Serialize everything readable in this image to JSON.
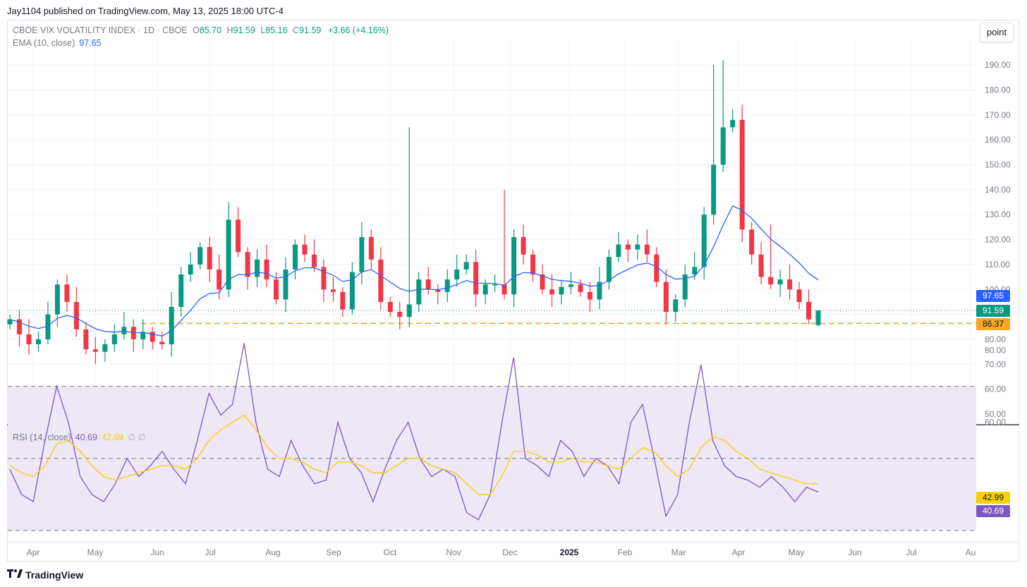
{
  "header": {
    "published": "Jay1104 published on TradingView.com, May 13, 2025 18:00 UTC-4"
  },
  "legend": {
    "symbol": "CBOE VIX VOLATILITY INDEX · 1D · CBOE",
    "o_label": "O",
    "o": "85.70",
    "h_label": "H",
    "h": "91.59",
    "l_label": "L",
    "l": "85.16",
    "c_label": "C",
    "c": "91.59",
    "change": "+3.66 (+4.16%)",
    "ema_label": "EMA (10, close)",
    "ema": "97.65",
    "rsi_label": "RSI (14, close)",
    "rsi": "40.69",
    "rsi_ma": "42.99",
    "rsi_extra": "∅ ∅"
  },
  "toolbar": {
    "point_label": "point"
  },
  "price_tags": {
    "ema": "97.65",
    "close": "91.59",
    "hline": "86.37",
    "rsi_ma": "42.99",
    "rsi": "40.69"
  },
  "brand": {
    "name": "TradingView",
    "logo_icon": "tradingview-logo-icon"
  },
  "colors": {
    "up": "#089981",
    "down": "#f23645",
    "ema": "#2962ff",
    "hline": "#f5a623",
    "rsi": "#7e57c2",
    "rsi_ma": "#f7d100",
    "rsi_band": "#ede7f6"
  },
  "chart_data": [
    {
      "type": "candlestick",
      "title": "CBOE VIX VOLATILITY INDEX · 1D · CBOE",
      "y_ticks": [
        "50.00",
        "60.00",
        "70.00",
        "80.00",
        "90.00",
        "100.00",
        "110.00",
        "120.00",
        "130.00",
        "140.00",
        "150.00",
        "160.00",
        "170.00",
        "180.00",
        "190.00"
      ],
      "ylim": [
        45,
        200
      ],
      "x_ticks": [
        "Apr",
        "May",
        "Jun",
        "Jul",
        "Aug",
        "Sep",
        "Oct",
        "Nov",
        "Dec",
        "2025",
        "Feb",
        "Mar",
        "Apr",
        "May",
        "Jun",
        "Jul",
        "Au"
      ],
      "horizontal_line": 86.37,
      "last": {
        "open": 85.7,
        "high": 91.59,
        "low": 85.16,
        "close": 91.59
      },
      "ema_last": 97.65,
      "approx_closes": [
        88,
        82,
        78,
        80,
        90,
        102,
        95,
        84,
        76,
        75,
        78,
        82,
        85,
        80,
        83,
        79,
        78,
        93,
        106,
        110,
        117,
        108,
        100,
        128,
        115,
        105,
        112,
        104,
        96,
        108,
        118,
        114,
        109,
        100,
        99,
        92,
        107,
        121,
        112,
        95,
        91,
        89,
        94,
        104,
        100,
        99,
        104,
        108,
        111,
        98,
        102,
        102,
        98,
        121,
        114,
        106,
        100,
        98,
        101,
        102,
        99,
        96,
        103,
        113,
        118,
        116,
        118,
        114,
        103,
        91,
        96,
        106,
        109,
        130,
        150,
        165,
        168,
        124,
        114,
        105,
        102,
        104,
        100,
        95,
        88,
        91.59
      ]
    },
    {
      "type": "line",
      "title": "RSI (14, close)",
      "y_ticks": [
        "40.00",
        "60.00",
        "80.00"
      ],
      "ylim": [
        20,
        85
      ],
      "bands": [
        30,
        50,
        70
      ],
      "series": [
        {
          "name": "RSI",
          "last": 40.69,
          "values": [
            47,
            40,
            38,
            55,
            70,
            60,
            45,
            40,
            38,
            43,
            50,
            45,
            48,
            52,
            47,
            43,
            55,
            68,
            62,
            65,
            82,
            60,
            47,
            45,
            55,
            48,
            43,
            44,
            60,
            50,
            46,
            38,
            47,
            55,
            60,
            50,
            45,
            47,
            45,
            35,
            33,
            40,
            60,
            78,
            50,
            48,
            45,
            55,
            52,
            45,
            50,
            48,
            43,
            60,
            65,
            50,
            34,
            40,
            60,
            76,
            55,
            48,
            45,
            44,
            42,
            45,
            42,
            38,
            42,
            40.69
          ]
        },
        {
          "name": "RSI MA",
          "last": 42.99,
          "values": [
            48,
            46,
            45,
            48,
            54,
            55,
            52,
            48,
            45,
            44,
            45,
            46,
            47,
            48,
            48,
            47,
            50,
            55,
            58,
            60,
            62,
            58,
            53,
            50,
            50,
            49,
            47,
            46,
            49,
            49,
            48,
            46,
            46,
            48,
            50,
            50,
            48,
            47,
            46,
            43,
            40,
            40,
            45,
            52,
            52,
            51,
            49,
            49,
            50,
            49,
            49,
            48,
            47,
            50,
            53,
            52,
            48,
            45,
            47,
            53,
            56,
            55,
            52,
            50,
            47,
            46,
            45,
            44,
            43,
            42.99
          ]
        }
      ]
    }
  ]
}
